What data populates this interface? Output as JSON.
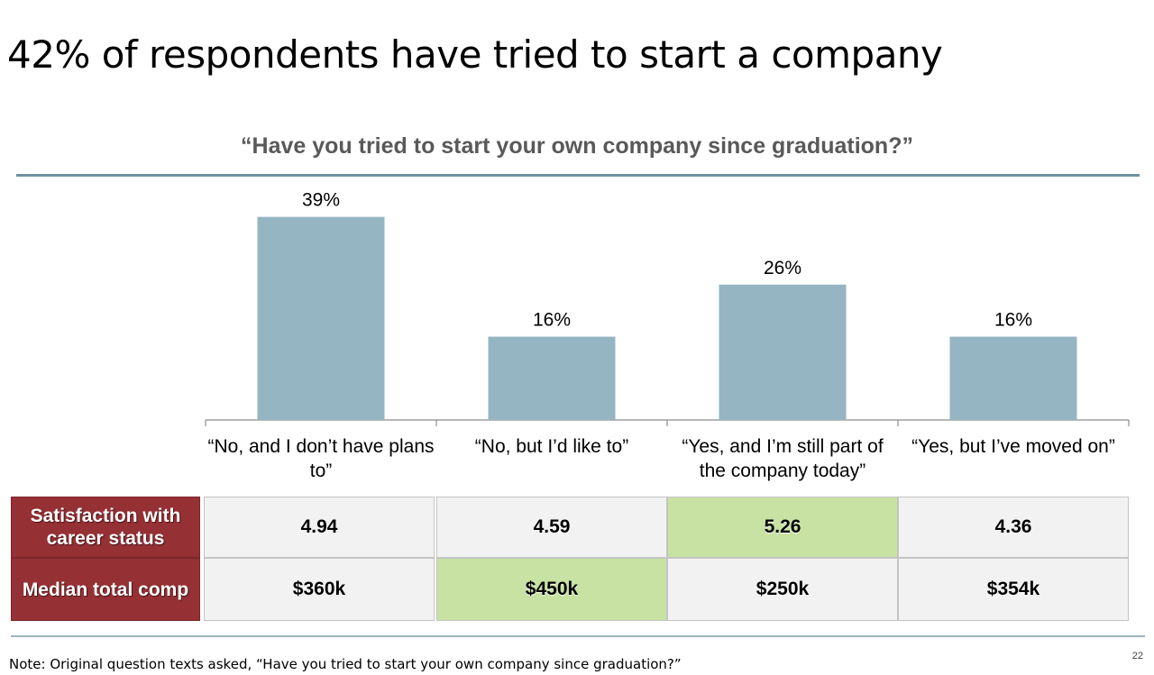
{
  "slide": {
    "title": "42% of respondents have tried to start a company",
    "note": "Note: Original question texts asked, “Have you tried to start your own company since graduation?”",
    "page_number": "22"
  },
  "chart_data": {
    "type": "bar",
    "title": "“Have you tried to start your own company since graduation?”",
    "categories": [
      "“No, and I don’t have plans to”",
      "“No, but I’d like to”",
      "“Yes, and I’m still part of the company today”",
      "“Yes, but I’ve moved on”"
    ],
    "values": [
      39,
      16,
      26,
      16
    ],
    "data_labels": [
      "39%",
      "16%",
      "26%",
      "16%"
    ],
    "unit": "%",
    "ylim": [
      0,
      45
    ],
    "grid": false,
    "bar_color": "#96b5c3"
  },
  "table": {
    "rows": [
      {
        "header": "Satisfaction with career status",
        "cells": [
          {
            "value": "4.94",
            "highlight": false
          },
          {
            "value": "4.59",
            "highlight": false
          },
          {
            "value": "5.26",
            "highlight": true
          },
          {
            "value": "4.36",
            "highlight": false
          }
        ]
      },
      {
        "header": "Median total comp",
        "cells": [
          {
            "value": "$360k",
            "highlight": false
          },
          {
            "value": "$450k",
            "highlight": true
          },
          {
            "value": "$250k",
            "highlight": false
          },
          {
            "value": "$354k",
            "highlight": false
          }
        ]
      }
    ],
    "header_color": "#953035",
    "highlight_color": "#c7e2a2"
  }
}
